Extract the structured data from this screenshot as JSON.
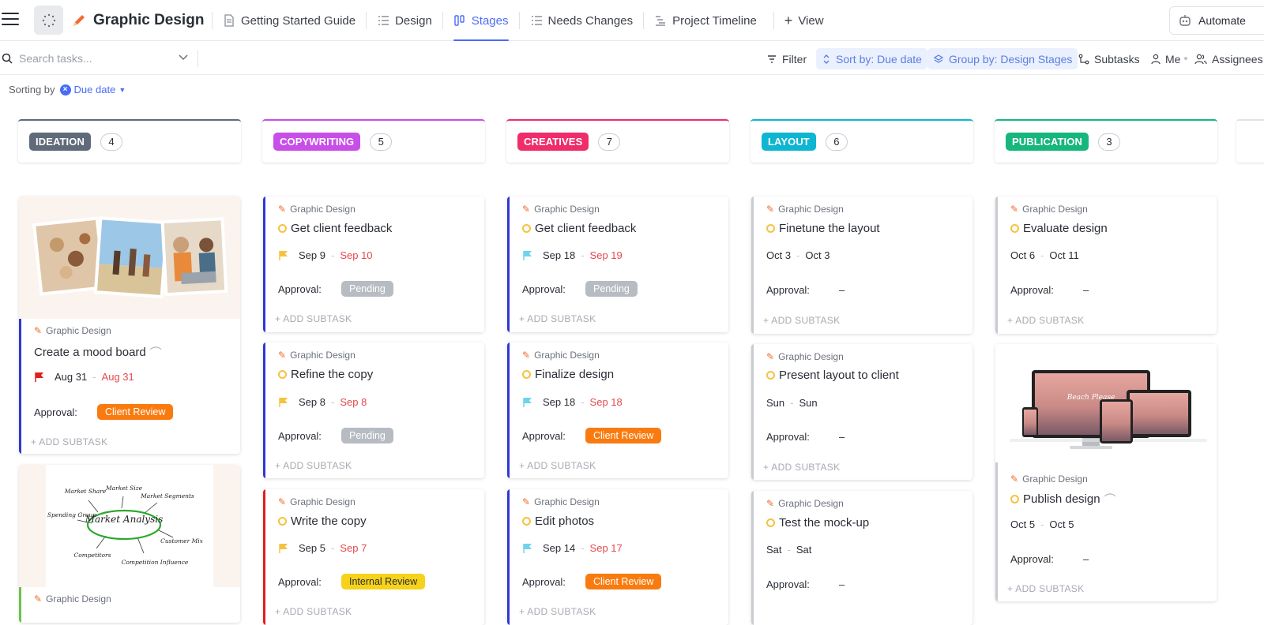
{
  "header": {
    "space_title": "Graphic Design",
    "tabs": [
      {
        "label": "Getting Started Guide",
        "icon": "doc-icon"
      },
      {
        "label": "Design",
        "icon": "list-icon"
      },
      {
        "label": "Stages",
        "icon": "board-icon",
        "active": true
      },
      {
        "label": "Needs Changes",
        "icon": "list-icon"
      },
      {
        "label": "Project Timeline",
        "icon": "gantt-icon"
      }
    ],
    "add_view": "View",
    "automate": "Automate"
  },
  "toolbar": {
    "search_placeholder": "Search tasks...",
    "filter": "Filter",
    "sort": "Sort by: Due date",
    "group": "Group by: Design Stages",
    "subtasks": "Subtasks",
    "me": "Me",
    "assignees": "Assignees"
  },
  "sorting": {
    "label": "Sorting by",
    "value": "Due date"
  },
  "columns": [
    {
      "name": "IDEATION",
      "count": "4",
      "color": "#5f6b7a"
    },
    {
      "name": "COPYWRITING",
      "count": "5",
      "color": "#c84ee8"
    },
    {
      "name": "CREATIVES",
      "count": "7",
      "color": "#f02d6b"
    },
    {
      "name": "LAYOUT",
      "count": "6",
      "color": "#0eb6d1"
    },
    {
      "name": "PUBLICATION",
      "count": "3",
      "color": "#17b67d"
    }
  ],
  "cards": {
    "ideation_1": {
      "crumb": "Graphic Design",
      "title": "Create a mood board",
      "start": "Aug 31",
      "end": "Aug 31",
      "approval_label": "Approval:",
      "approval": "Client Review",
      "add": "+ ADD SUBTASK",
      "bar": "#2f37d6",
      "flag": "#e01e1e"
    },
    "ideation_2": {
      "crumb": "Graphic Design",
      "bar": "#6cc24a",
      "diagram": {
        "center": "Market Analysis",
        "labels": [
          "Market Share",
          "Market Size",
          "Market Segments",
          "Spending Group",
          "Customer Mix",
          "Competitors",
          "Competition Influence"
        ]
      }
    },
    "copy_1": {
      "crumb": "Graphic Design",
      "title": "Get client feedback",
      "start": "Sep 9",
      "end": "Sep 10",
      "approval_label": "Approval:",
      "approval": "Pending",
      "add": "+ ADD SUBTASK",
      "bar": "#2f37d6",
      "flag": "#f6c23e"
    },
    "copy_2": {
      "crumb": "Graphic Design",
      "title": "Refine the copy",
      "start": "Sep 8",
      "end": "Sep 8",
      "approval_label": "Approval:",
      "approval": "Pending",
      "add": "+ ADD SUBTASK",
      "bar": "#2f37d6",
      "flag": "#f6c23e"
    },
    "copy_3": {
      "crumb": "Graphic Design",
      "title": "Write the copy",
      "start": "Sep 5",
      "end": "Sep 7",
      "approval_label": "Approval:",
      "approval": "Internal Review",
      "add": "+ ADD SUBTASK",
      "bar": "#e01e1e",
      "flag": "#f6c23e"
    },
    "cre_1": {
      "crumb": "Graphic Design",
      "title": "Get client feedback",
      "start": "Sep 18",
      "end": "Sep 19",
      "approval_label": "Approval:",
      "approval": "Pending",
      "add": "+ ADD SUBTASK",
      "bar": "#2f37d6",
      "flag": "#6fd3ef"
    },
    "cre_2": {
      "crumb": "Graphic Design",
      "title": "Finalize design",
      "start": "Sep 18",
      "end": "Sep 18",
      "approval_label": "Approval:",
      "approval": "Client Review",
      "add": "+ ADD SUBTASK",
      "bar": "#2f37d6",
      "flag": "#6fd3ef"
    },
    "cre_3": {
      "crumb": "Graphic Design",
      "title": "Edit photos",
      "start": "Sep 14",
      "end": "Sep 17",
      "approval_label": "Approval:",
      "approval": "Client Review",
      "add": "+ ADD SUBTASK",
      "bar": "#2f37d6",
      "flag": "#6fd3ef"
    },
    "lay_1": {
      "crumb": "Graphic Design",
      "title": "Finetune the layout",
      "start": "Oct 3",
      "end": "Oct 3",
      "approval_label": "Approval:",
      "approval": "–",
      "add": "+ ADD SUBTASK",
      "bar": "#c8ccd2"
    },
    "lay_2": {
      "crumb": "Graphic Design",
      "title": "Present layout to client",
      "start": "Sun",
      "end": "Sun",
      "approval_label": "Approval:",
      "approval": "–",
      "add": "+ ADD SUBTASK",
      "bar": "#c8ccd2"
    },
    "lay_3": {
      "crumb": "Graphic Design",
      "title": "Test the mock-up",
      "start": "Sat",
      "end": "Sat",
      "approval_label": "Approval:",
      "approval": "–",
      "bar": "#c8ccd2"
    },
    "pub_1": {
      "crumb": "Graphic Design",
      "title": "Evaluate design",
      "start": "Oct 6",
      "end": "Oct 11",
      "approval_label": "Approval:",
      "approval": "–",
      "add": "+ ADD SUBTASK",
      "bar": "#c8ccd2"
    },
    "pub_2": {
      "crumb": "Graphic Design",
      "title": "Publish design",
      "start": "Oct 5",
      "end": "Oct 5",
      "approval_label": "Approval:",
      "approval": "–",
      "add": "+ ADD SUBTASK",
      "bar": "#c8ccd2",
      "mockup_text": "Beach Please"
    }
  }
}
